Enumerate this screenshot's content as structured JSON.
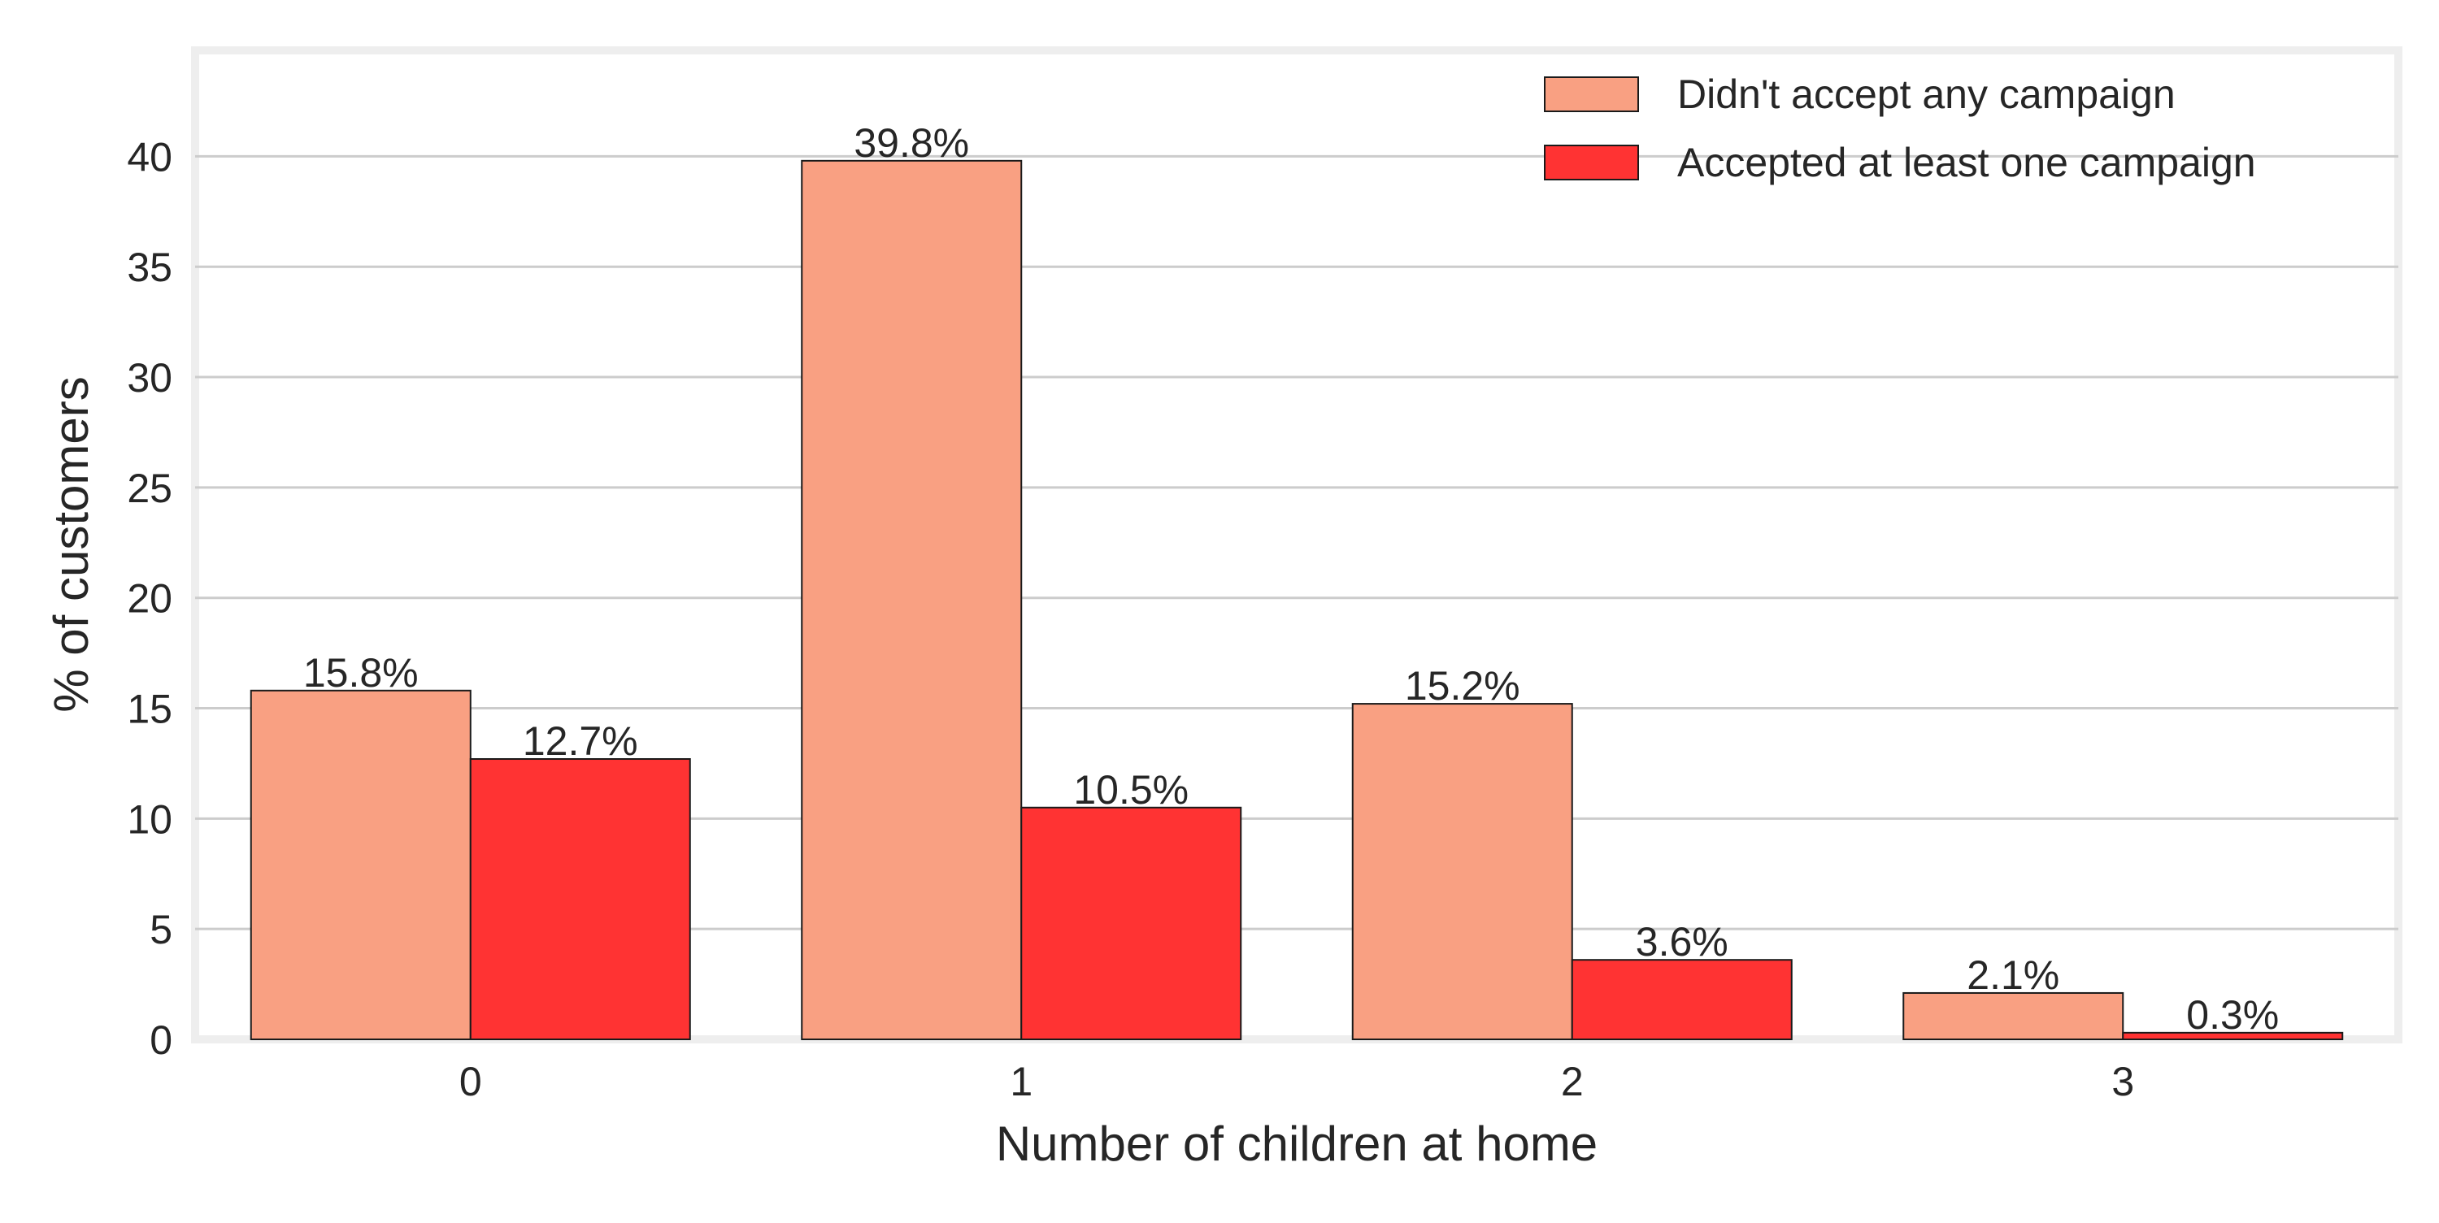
{
  "chart_data": {
    "type": "bar",
    "title": "",
    "xlabel": "Number of children at home",
    "ylabel": "% of customers",
    "categories": [
      "0",
      "1",
      "2",
      "3"
    ],
    "series": [
      {
        "name": "Didn't accept any campaign",
        "color": "#f9a082",
        "values": [
          15.8,
          39.8,
          15.2,
          2.1
        ],
        "labels": [
          "15.8%",
          "39.8%",
          "15.2%",
          "2.1%"
        ]
      },
      {
        "name": "Accepted at least one campaign",
        "color": "#ff3333",
        "values": [
          12.7,
          10.5,
          3.6,
          0.3
        ],
        "labels": [
          "12.7%",
          "10.5%",
          "3.6%",
          "0.3%"
        ]
      }
    ],
    "ylim": [
      0,
      44.8
    ],
    "yticks": [
      "0",
      "5",
      "10",
      "15",
      "20",
      "25",
      "30",
      "35",
      "40"
    ],
    "ytick_values": [
      0,
      5,
      10,
      15,
      20,
      25,
      30,
      35,
      40
    ],
    "grid": "horizontal",
    "legend_position": "top-right"
  }
}
